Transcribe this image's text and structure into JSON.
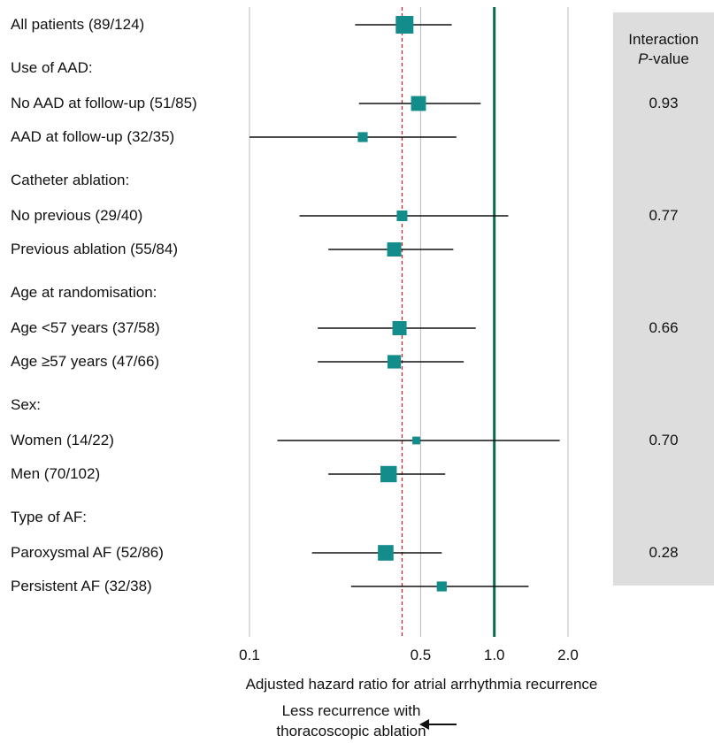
{
  "chart_data": {
    "type": "forest",
    "xscale": "log",
    "xlim": [
      0.1,
      2.0
    ],
    "xticks": [
      "0.1",
      "0.5",
      "1.0",
      "2.0"
    ],
    "xlabel": "Adjusted hazard ratio for atrial arrhythmia recurrence",
    "reference_line": 1.0,
    "overall_effect_line": 0.42,
    "side_header": [
      "Interaction",
      "P-value"
    ],
    "favours_note": [
      "Less recurrence with",
      "thoracoscopic ablation"
    ],
    "rows": [
      {
        "label": "All patients (89/124)",
        "hr": 0.43,
        "lo": 0.27,
        "hi": 0.67,
        "size": 1.0
      },
      {
        "label": "Use of AAD:",
        "header": true
      },
      {
        "label": "No AAD at follow-up (51/85)",
        "hr": 0.49,
        "lo": 0.28,
        "hi": 0.88,
        "size": 0.8,
        "p": "0.93"
      },
      {
        "label": "AAD at follow-up (32/35)",
        "hr": 0.29,
        "lo": 0.1,
        "hi": 0.7,
        "size": 0.45
      },
      {
        "label": "Catheter ablation:",
        "header": true
      },
      {
        "label": "No previous (29/40)",
        "hr": 0.42,
        "lo": 0.16,
        "hi": 1.14,
        "size": 0.5,
        "p": "0.77"
      },
      {
        "label": "Previous ablation (55/84)",
        "hr": 0.39,
        "lo": 0.21,
        "hi": 0.68,
        "size": 0.75
      },
      {
        "label": "Age at randomisation:",
        "header": true
      },
      {
        "label": "Age <57 years (37/58)",
        "hr": 0.41,
        "lo": 0.19,
        "hi": 0.84,
        "size": 0.75,
        "p": "0.66"
      },
      {
        "label": "Age ≥57 years (47/66)",
        "hr": 0.39,
        "lo": 0.19,
        "hi": 0.75,
        "size": 0.7
      },
      {
        "label": "Sex:",
        "header": true
      },
      {
        "label": "Women (14/22)",
        "hr": 0.48,
        "lo": 0.13,
        "hi": 1.85,
        "size": 0.3,
        "p": "0.70"
      },
      {
        "label": "Men (70/102)",
        "hr": 0.37,
        "lo": 0.21,
        "hi": 0.63,
        "size": 0.9
      },
      {
        "label": "Type of AF:",
        "header": true
      },
      {
        "label": "Paroxysmal AF (52/86)",
        "hr": 0.36,
        "lo": 0.18,
        "hi": 0.61,
        "size": 0.85,
        "p": "0.28"
      },
      {
        "label": "Persistent AF (32/38)",
        "hr": 0.61,
        "lo": 0.26,
        "hi": 1.38,
        "size": 0.45
      }
    ]
  },
  "colors": {
    "marker": "#138c8c",
    "null_line": "#0e6b47",
    "overall_line": "#c8282d",
    "grid": "#bbbbbb",
    "pbox": "#dddddd"
  }
}
